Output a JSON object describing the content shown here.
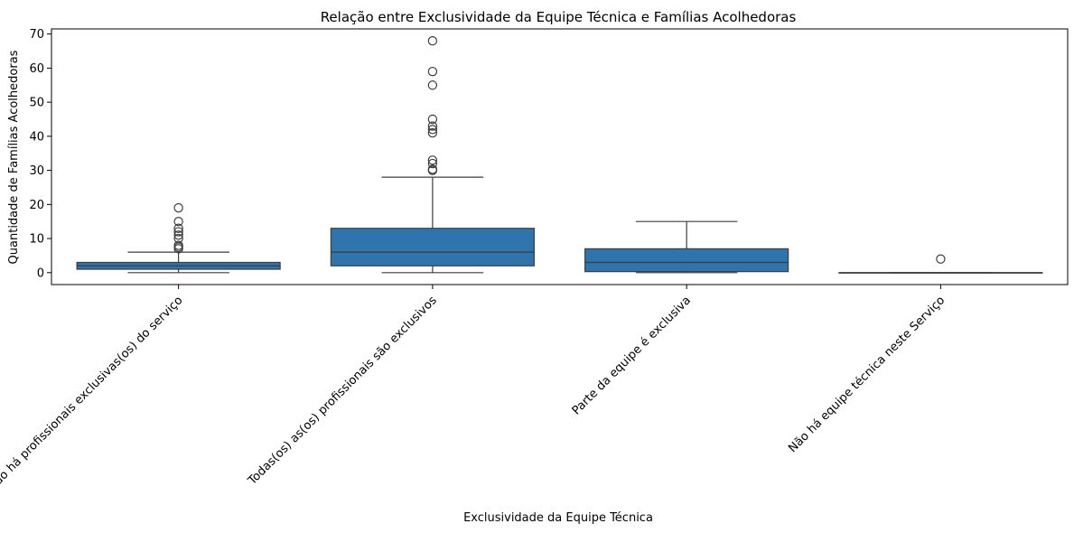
{
  "chart_data": {
    "type": "box",
    "title": "Relação entre Exclusividade da Equipe Técnica e Famílias Acolhedoras",
    "xlabel": "Exclusividade da Equipe Técnica",
    "ylabel": "Quantidade de Famílias Acolhedoras",
    "ylim": [
      -3.5,
      71.5
    ],
    "yticks": [
      0,
      10,
      20,
      30,
      40,
      50,
      60,
      70
    ],
    "grid": false,
    "box_color": "#2f74ad",
    "line_color": "#3d3d3d",
    "categories": [
      "Não há profissionais exclusivas(os) do serviço",
      "Todas(os) as(os) profissionais são exclusivos",
      "Parte da equipe é exclusiva",
      "Não há equipe técnica neste Serviço"
    ],
    "boxes": [
      {
        "whislo": 0,
        "q1": 1,
        "median": 2,
        "q3": 3,
        "whishi": 6,
        "fliers": [
          7,
          7.5,
          8,
          10,
          11,
          12,
          13,
          15,
          19
        ]
      },
      {
        "whislo": 0,
        "q1": 2,
        "median": 6,
        "q3": 13,
        "whishi": 28,
        "fliers": [
          30,
          30.3,
          32,
          33,
          41,
          42,
          43,
          45,
          55,
          59,
          68
        ]
      },
      {
        "whislo": 0,
        "q1": 0.3,
        "median": 3,
        "q3": 7,
        "whishi": 15,
        "fliers": []
      },
      {
        "whislo": 0,
        "q1": 0,
        "median": 0,
        "q3": 0,
        "whishi": 0,
        "fliers": [
          4
        ]
      }
    ]
  }
}
